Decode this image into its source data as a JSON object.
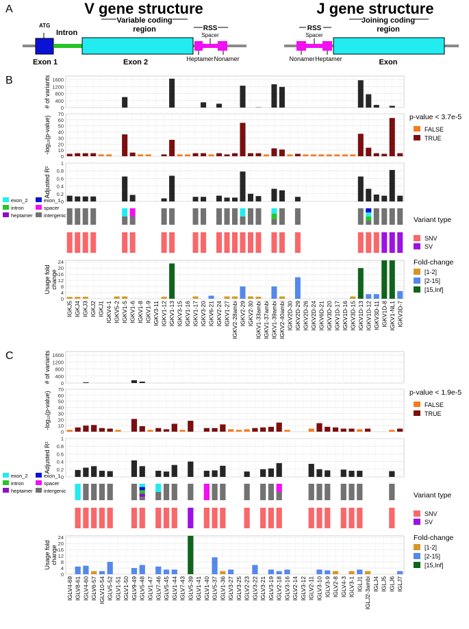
{
  "panel_letters": {
    "a": "A",
    "b": "B",
    "c": "C"
  },
  "diagram": {
    "v_title": "V gene structure",
    "j_title": "J gene structure",
    "atg": "ATG",
    "intron": "Intron",
    "exon1": "Exon 1",
    "exon2": "Exon 2",
    "variable_region": [
      "Variable coding",
      "region"
    ],
    "rss": "RSS",
    "spacer": "Spacer",
    "heptamer": "Heptamer",
    "nonamer": "Nonamer",
    "joining_region": [
      "Joining coding",
      "region"
    ],
    "exon": "Exon",
    "colors": {
      "exon1": "#0a12d6",
      "intron": "#27c427",
      "exon": "#22ecef",
      "rss": "#f20ff2",
      "line": "#8a8a8a"
    }
  },
  "labels": {
    "variants": "# of variants",
    "pvalue": "-log₁₀(p-value)",
    "adjr2": "Adjusted R²",
    "usage": [
      "Usage fold",
      "change"
    ],
    "pvalue_legend_b": "p-value < 3.7e-5",
    "pvalue_legend_c": "p-value < 1.9e-5",
    "false": "FALSE",
    "true": "TRUE",
    "variant_type": "Variant type",
    "snv": "SNV",
    "sv": "SV",
    "fold_change": "Fold-change",
    "fold_1": "[1-2]",
    "fold_2": "[2-15]",
    "fold_3": "[15,Inf]",
    "regions": [
      "exon_2",
      "exon_1",
      "intron",
      "spacer",
      "heptamer",
      "intergenic"
    ]
  },
  "colors": {
    "variants": "#262626",
    "p_true": "#7b0f0f",
    "p_false": "#f47c20",
    "snv": "#f8686a",
    "sv": "#9e11e4",
    "fold1": "#d59724",
    "fold2": "#5588ea",
    "fold3": "#10641c",
    "exon_2": "#22ecef",
    "exon_1": "#0a12d6",
    "intron": "#27c427",
    "spacer": "#f20ff2",
    "heptamer": "#8a10c8",
    "intergenic": "#727272"
  },
  "chart_data": [
    {
      "type": "bar",
      "panel": "B",
      "categories": [
        "IGKJ5",
        "IGKJ4",
        "IGKJ3",
        "IGKJ2",
        "IGKJ1",
        "IGKV4-1",
        "IGKV5-2",
        "IGKV1-5",
        "IGKV1-6",
        "IGKV1-8",
        "IGKV1-9",
        "IGKV3-11",
        "IGKV1-12",
        "IGKV1-13",
        "IGKV3-15",
        "IGKV1-16",
        "IGKV1-17",
        "IGKV3-20",
        "IGKV6-21",
        "IGKV2-24",
        "IGKV1-27",
        "IGKV2-28ambi",
        "IGKV2-29",
        "IGKV2-30",
        "IGKV1-33ambi",
        "IGKV1-37ambi",
        "IGKV1-39ambi",
        "IGKV2-40ambi",
        "IGKV2D-30",
        "IGKV2D-29",
        "IGKV2D-26",
        "IGKV2D-24",
        "IGKV6D-21",
        "IGKV3D-20",
        "IGKV1D-17",
        "IGKV1D-16",
        "IGKV3D-15",
        "IGKV1D-13",
        "IGKV1D-12",
        "IGKV3D-11",
        "IGKV1D-8",
        "IGKV1-NL1",
        "IGKV3D-7"
      ],
      "variants": {
        "ylabel": "# of variants",
        "ylim": [
          0,
          1800
        ],
        "ticks": [
          0,
          400,
          800,
          1200,
          1600
        ],
        "values": [
          0,
          0,
          0,
          0,
          0,
          0,
          0,
          600,
          0,
          0,
          0,
          0,
          0,
          1650,
          0,
          0,
          0,
          300,
          0,
          220,
          0,
          0,
          1250,
          0,
          15,
          0,
          1330,
          1180,
          0,
          0,
          0,
          0,
          0,
          0,
          0,
          0,
          0,
          1560,
          760,
          150,
          0,
          100,
          0
        ]
      },
      "pvalue": {
        "ylabel": "-log10(p-value)",
        "ylim": [
          0,
          70
        ],
        "ticks": [
          0,
          10,
          20,
          30,
          40,
          50,
          60,
          70
        ],
        "legend": "p-value < 3.7e-5",
        "values": [
          4,
          5,
          5,
          5,
          3,
          3,
          0,
          36,
          6,
          3,
          3,
          0,
          3,
          27,
          3,
          3,
          5,
          5,
          3,
          5,
          3,
          5,
          55,
          5,
          5,
          3,
          13,
          11,
          3,
          4,
          3,
          3,
          3,
          3,
          3,
          3,
          3,
          37,
          14,
          5,
          4,
          63,
          5
        ],
        "significant": [
          1,
          1,
          1,
          1,
          0,
          0,
          0,
          1,
          1,
          0,
          0,
          0,
          1,
          1,
          0,
          0,
          1,
          1,
          0,
          1,
          1,
          1,
          1,
          1,
          1,
          0,
          1,
          1,
          0,
          1,
          0,
          0,
          0,
          0,
          0,
          0,
          0,
          1,
          1,
          1,
          1,
          1,
          1
        ]
      },
      "adjr2": {
        "ylabel": "Adjusted R²",
        "ylim": [
          0,
          1.0
        ],
        "ticks": [
          0,
          0.2,
          0.4,
          0.6,
          0.8,
          1.0
        ],
        "values": [
          0.15,
          0.13,
          0.13,
          0.13,
          0,
          0,
          0,
          0.65,
          0.17,
          0,
          0,
          0,
          0.08,
          0.67,
          0,
          0,
          0.12,
          0.12,
          0,
          0.15,
          0.1,
          0.1,
          0.78,
          0.2,
          0.14,
          0,
          0.33,
          0.29,
          0,
          0.12,
          0,
          0,
          0,
          0,
          0,
          0,
          0,
          0.65,
          0.33,
          0.18,
          0.15,
          0.82,
          0.15
        ]
      },
      "region": [
        "intergenic",
        "intergenic",
        "intergenic",
        "intergenic",
        null,
        null,
        null,
        "exon_2|intergenic",
        "spacer|intergenic",
        null,
        null,
        null,
        "intergenic",
        "intergenic",
        null,
        null,
        "intergenic",
        "intergenic",
        null,
        "intergenic",
        "intergenic",
        "intergenic",
        "exon_2|intergenic",
        "intergenic",
        "intergenic",
        null,
        "exon_2|intron|intergenic",
        "intergenic",
        null,
        "intergenic",
        null,
        null,
        null,
        null,
        null,
        null,
        null,
        "intergenic",
        "exon_1|exon_2|intron|intergenic",
        "intergenic",
        "intergenic",
        "intergenic",
        "intergenic"
      ],
      "variant_type": [
        "SNV",
        "SNV",
        "SNV",
        "SNV",
        null,
        null,
        null,
        "SNV",
        "SNV",
        null,
        null,
        null,
        "SNV",
        "SNV",
        null,
        null,
        "SNV",
        "SNV",
        null,
        "SNV",
        "SNV",
        "SNV",
        "SNV",
        "SNV",
        "SNV",
        null,
        "SNV",
        "SNV",
        null,
        "SNV",
        null,
        null,
        null,
        null,
        null,
        null,
        null,
        "SNV",
        "SNV",
        "SNV",
        "SV",
        "SV",
        "SV"
      ],
      "usage": {
        "ylabel": "Usage fold change",
        "ylim": [
          0,
          25
        ],
        "ticks": [
          0,
          4,
          8,
          12,
          16,
          20,
          24
        ],
        "values": [
          1.2,
          1.2,
          1.3,
          0,
          0,
          0,
          1.5,
          1.5,
          0,
          0,
          0,
          0,
          1.3,
          23,
          0,
          0,
          1.5,
          0,
          2,
          0,
          1.5,
          1.5,
          8,
          1.5,
          1.3,
          0,
          8,
          1.5,
          0,
          14,
          0,
          0,
          0,
          0,
          0,
          0,
          1.5,
          20,
          3,
          3,
          25,
          25,
          5
        ],
        "fold": [
          "1-2",
          "1-2",
          "1-2",
          null,
          null,
          null,
          "1-2",
          "1-2",
          null,
          null,
          null,
          null,
          "1-2",
          "15-Inf",
          null,
          null,
          "1-2",
          null,
          "2-15",
          null,
          "1-2",
          "1-2",
          "2-15",
          "1-2",
          "1-2",
          null,
          "2-15",
          "1-2",
          null,
          "2-15",
          null,
          null,
          null,
          null,
          null,
          null,
          "1-2",
          "15-Inf",
          "2-15",
          "2-15",
          "15-Inf",
          "15-Inf",
          "2-15"
        ]
      }
    },
    {
      "type": "bar",
      "panel": "C",
      "categories": [
        "IGLV4-69",
        "IGLV8-61",
        "IGLV4-60",
        "IGLV6-57",
        "IGLV10-54",
        "IGLV5-52",
        "IGLV1-51",
        "IGLV1-50",
        "IGLV9-49",
        "IGLV5-48",
        "IGLV1-47",
        "IGLV7-46",
        "IGLV5-45",
        "IGLV1-44",
        "IGLV7-43",
        "IGLV5-39",
        "IGLV1-41",
        "IGLV1-40",
        "IGLV5-37",
        "IGLV1-36",
        "IGLV3-27",
        "IGLV3-25",
        "IGLV2-23",
        "IGLV3-22",
        "IGLV3-21",
        "IGLV3-19",
        "IGLV2-18",
        "IGLV3-16",
        "IGLV2-14",
        "IGLV3-12",
        "IGLV2-11",
        "IGLV3-10",
        "IGLV3-9",
        "IGLV2-8",
        "IGLV4-3",
        "IGLV3-1",
        "IGLJ1",
        "IGLJ2-3ambi",
        "IGLJ4",
        "IGLJ5",
        "IGLJ6",
        "IGLJ7"
      ],
      "variants": {
        "ylabel": "# of variants",
        "ylim": [
          0,
          1800
        ],
        "ticks": [
          0,
          400,
          800,
          1200,
          1600
        ],
        "values": [
          0,
          0,
          40,
          0,
          0,
          0,
          0,
          0,
          160,
          80,
          0,
          0,
          0,
          0,
          0,
          0,
          0,
          0,
          0,
          0,
          0,
          0,
          0,
          0,
          0,
          0,
          0,
          0,
          0,
          0,
          0,
          0,
          0,
          0,
          0,
          0,
          0,
          0,
          0,
          0,
          0,
          0
        ]
      },
      "pvalue": {
        "ylabel": "-log10(p-value)",
        "ylim": [
          0,
          70
        ],
        "ticks": [
          0,
          10,
          20,
          30,
          40,
          50,
          60,
          70
        ],
        "legend": "p-value < 1.9e-5",
        "values": [
          3,
          7,
          10,
          11,
          6,
          5,
          3,
          0,
          21,
          9,
          3,
          6,
          4,
          13,
          3,
          18,
          0,
          6,
          6,
          12,
          4,
          3,
          4,
          6,
          7,
          8,
          15,
          3,
          0,
          0,
          5,
          14,
          8,
          7,
          5,
          5,
          4,
          5,
          0,
          0,
          3,
          5
        ],
        "significant": [
          0,
          1,
          1,
          1,
          1,
          1,
          0,
          0,
          1,
          1,
          0,
          1,
          1,
          1,
          0,
          1,
          0,
          1,
          1,
          1,
          0,
          0,
          0,
          1,
          1,
          1,
          1,
          0,
          0,
          0,
          0,
          1,
          1,
          1,
          1,
          1,
          0,
          1,
          0,
          0,
          0,
          1
        ]
      },
      "adjr2": {
        "ylabel": "Adjusted R²",
        "ylim": [
          0,
          1.0
        ],
        "ticks": [
          0,
          0.2,
          0.4,
          0.6,
          0.8,
          1.0
        ],
        "values": [
          0,
          0.18,
          0.24,
          0.28,
          0.16,
          0.15,
          0,
          0,
          0.43,
          0.28,
          0,
          0.16,
          0.14,
          0.31,
          0,
          0.4,
          0,
          0.16,
          0.17,
          0.29,
          0,
          0,
          0.14,
          0,
          0.2,
          0.22,
          0.36,
          0,
          0,
          0,
          0.34,
          0.2,
          0.17,
          0,
          0.19,
          0.16,
          0.16,
          0,
          0,
          0,
          0.15,
          0
        ],
        "ticks_shown_for": []
      },
      "region": [
        null,
        "exon_2",
        "intergenic",
        "intergenic",
        "intergenic",
        "intergenic",
        null,
        null,
        "intergenic",
        "exon_2|exon_1|intron|heptamer|intergenic",
        null,
        "exon_2|intergenic",
        "intergenic",
        "intergenic",
        null,
        "intergenic",
        null,
        "spacer",
        "intergenic",
        "intergenic",
        null,
        null,
        "intergenic",
        null,
        "intergenic",
        "intergenic",
        "spacer|intergenic",
        null,
        null,
        null,
        "intergenic",
        "intergenic",
        "intergenic",
        null,
        "intergenic",
        "intergenic",
        "intergenic",
        null,
        null,
        null,
        "intergenic",
        null
      ],
      "variant_type": [
        null,
        "SNV",
        "SNV",
        "SNV",
        "SNV",
        "SNV",
        null,
        null,
        "SNV",
        "SNV",
        null,
        "SNV",
        "SNV",
        "SNV",
        null,
        "SV",
        null,
        "SNV",
        "SNV",
        "SNV",
        null,
        null,
        "SNV",
        null,
        "SNV",
        "SNV",
        "SNV",
        null,
        null,
        null,
        "SNV",
        "SNV",
        "SNV",
        null,
        "SNV",
        "SNV",
        "SNV",
        null,
        null,
        null,
        "SNV",
        null
      ],
      "usage": {
        "ylabel": "Usage fold change",
        "ylim": [
          0,
          25
        ],
        "ticks": [
          0,
          4,
          8,
          12,
          16,
          20,
          24
        ],
        "values": [
          0,
          5,
          5.5,
          2,
          2,
          8,
          0,
          0,
          4,
          6,
          0,
          5,
          3,
          3,
          0,
          25,
          0,
          0,
          11,
          2,
          3,
          0,
          0,
          6,
          0,
          3,
          2,
          3,
          0,
          0,
          0,
          3,
          2.5,
          2,
          0,
          2,
          3,
          2,
          0,
          0,
          0,
          2
        ],
        "fold": [
          null,
          "2-15",
          "2-15",
          "1-2",
          "2-15",
          "2-15",
          null,
          null,
          "2-15",
          "2-15",
          null,
          "2-15",
          "2-15",
          "2-15",
          null,
          "15-Inf",
          null,
          null,
          "2-15",
          "1-2",
          "2-15",
          null,
          null,
          "2-15",
          null,
          "2-15",
          "2-15",
          "2-15",
          null,
          null,
          null,
          "2-15",
          "2-15",
          "1-2",
          null,
          "1-2",
          "2-15",
          "1-2",
          null,
          null,
          null,
          "2-15"
        ]
      }
    }
  ]
}
